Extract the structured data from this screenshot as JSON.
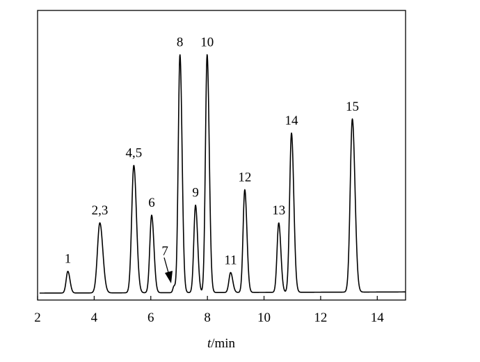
{
  "chart_data": {
    "type": "line",
    "xlabel_var": "t",
    "xlabel_unit": "/min",
    "xlim": [
      2,
      15
    ],
    "ylim": [
      0,
      1
    ],
    "xticks": [
      2,
      4,
      6,
      8,
      10,
      12,
      14
    ],
    "grid": false,
    "baseline": 0.024,
    "line_color": "#000000",
    "series": [
      {
        "peaks": [
          {
            "label": "1",
            "t": 3.07,
            "height": 0.075,
            "width": 0.06
          },
          {
            "label": "2,3",
            "t": 4.2,
            "height": 0.242,
            "width": 0.085
          },
          {
            "label": "4,5",
            "t": 5.4,
            "height": 0.44,
            "width": 0.075
          },
          {
            "label": "6",
            "t": 6.03,
            "height": 0.268,
            "width": 0.065
          },
          {
            "label": "7",
            "t": 6.82,
            "height": 0.022,
            "width": 0.04
          },
          {
            "label": "8",
            "t": 7.03,
            "height": 0.822,
            "width": 0.06
          },
          {
            "label": "9",
            "t": 7.58,
            "height": 0.302,
            "width": 0.06
          },
          {
            "label": "10",
            "t": 7.99,
            "height": 0.822,
            "width": 0.06
          },
          {
            "label": "11",
            "t": 8.82,
            "height": 0.069,
            "width": 0.06
          },
          {
            "label": "12",
            "t": 9.32,
            "height": 0.355,
            "width": 0.06
          },
          {
            "label": "13",
            "t": 10.52,
            "height": 0.24,
            "width": 0.06
          },
          {
            "label": "14",
            "t": 10.97,
            "height": 0.55,
            "width": 0.065
          },
          {
            "label": "15",
            "t": 13.12,
            "height": 0.598,
            "width": 0.075
          }
        ]
      }
    ]
  }
}
